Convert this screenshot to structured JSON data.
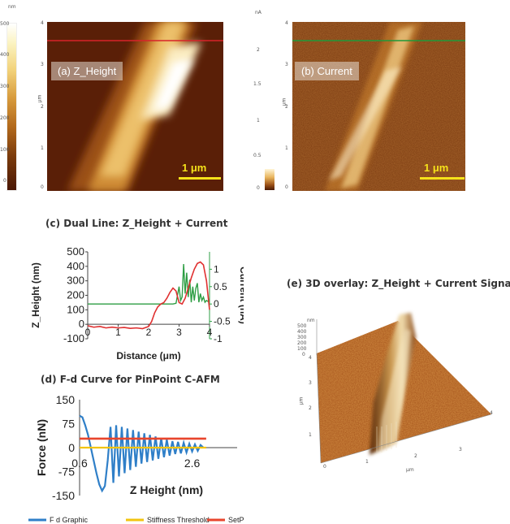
{
  "panel_a": {
    "label": "(a) Z_Height",
    "unit": "nm",
    "colorbar_ticks": [
      "500",
      "400",
      "300",
      "200",
      "100",
      "0"
    ],
    "axis_ticks": [
      "4",
      "3",
      "2",
      "1",
      "0"
    ],
    "axis_unit": "μm",
    "scale_label": "1  μm"
  },
  "panel_b": {
    "label": "(b) Current",
    "unit": "nA",
    "colorbar_ticks": [
      "2",
      "1.5",
      "1",
      "0.5",
      "0"
    ],
    "axis_ticks": [
      "4",
      "3",
      "2",
      "1",
      "0"
    ],
    "axis_unit": "μm",
    "scale_label": "1   μm"
  },
  "panel_e": {
    "title": "(e) 3D overlay: Z_Height + Current Signal",
    "z_unit": "nm",
    "z_ticks": [
      "500",
      "400",
      "300",
      "200",
      "100",
      "0"
    ],
    "axis_ticks_right": [
      "0",
      "1",
      "2",
      "3",
      "4"
    ],
    "axis_ticks_left": [
      "1",
      "2",
      "3",
      "4"
    ],
    "axis_unit": "μm"
  },
  "colors": {
    "height_series": "#e03030",
    "current_series": "#2e9e44",
    "fd_graphic": "#2f7fc8",
    "stiffness": "#f2c40f",
    "setpoint": "#e8452c",
    "scalebar": "#f5e21a"
  },
  "chart_data": [
    {
      "id": "c",
      "type": "line",
      "title": "(c) Dual Line: Z_Height + Current",
      "xlabel": "Distance (μm)",
      "ylabel": "Z_Height (nm)",
      "y2label": "Current (nA)",
      "xlim": [
        0,
        4
      ],
      "ylim": [
        -100,
        500
      ],
      "y2lim": [
        -1,
        1.5
      ],
      "xticks": [
        "0",
        "1",
        "2",
        "3",
        "4"
      ],
      "yticks": [
        "-100",
        "0",
        "100",
        "200",
        "300",
        "400",
        "500"
      ],
      "y2ticks": [
        "-1",
        "-0.5",
        "0",
        "0.5",
        "1"
      ],
      "series": [
        {
          "axis": "left",
          "x": [
            0,
            0.2,
            0.4,
            0.6,
            0.8,
            1.0,
            1.2,
            1.4,
            1.6,
            1.8,
            2.0,
            2.1,
            2.2,
            2.3,
            2.4,
            2.5,
            2.6,
            2.7,
            2.8,
            2.9,
            3.0,
            3.1,
            3.2,
            3.3,
            3.4,
            3.5,
            3.6,
            3.7,
            3.8,
            3.9,
            4.0
          ],
          "values": [
            -10,
            -20,
            -15,
            -25,
            -20,
            -25,
            -22,
            -28,
            -25,
            -30,
            -15,
            20,
            80,
            120,
            140,
            150,
            180,
            220,
            250,
            230,
            150,
            140,
            180,
            250,
            320,
            380,
            420,
            430,
            410,
            300,
            100
          ]
        },
        {
          "axis": "right",
          "x": [
            0,
            0.5,
            1.0,
            1.5,
            2.0,
            2.5,
            2.8,
            2.9,
            3.0,
            3.05,
            3.1,
            3.15,
            3.2,
            3.25,
            3.3,
            3.35,
            3.4,
            3.45,
            3.5,
            3.55,
            3.6,
            3.65,
            3.7,
            3.75,
            3.8,
            3.85,
            3.9,
            4.0
          ],
          "values": [
            0,
            0,
            0,
            0,
            0,
            0,
            0,
            0.02,
            0.5,
            0.1,
            0.2,
            1.15,
            0.3,
            0.9,
            0.2,
            0.7,
            0.05,
            0.5,
            0.1,
            0.45,
            0.6,
            0.05,
            0.3,
            0.1,
            0.2,
            0.05,
            0.1,
            0.05
          ]
        }
      ]
    },
    {
      "id": "d",
      "type": "line",
      "title": "(d) F-d Curve for PinPoint C-AFM",
      "xlabel": "Z Height (nm)",
      "ylabel": "Force (nN)",
      "xlim": [
        0.6,
        3.4
      ],
      "ylim": [
        -150,
        150
      ],
      "xticks_shown": [
        "0.6",
        "2.6"
      ],
      "yticks": [
        "150",
        "75",
        "0",
        "-75",
        "-150"
      ],
      "legend": [
        "F d Graphic",
        "Stiffness Threshold",
        "SetPoint"
      ],
      "setpoint": 28,
      "stiffness_threshold": 0,
      "series": [
        {
          "name": "F d Graphic",
          "x": [
            0.6,
            0.65,
            0.7,
            0.75,
            0.8,
            0.85,
            0.9,
            0.95,
            1.0,
            1.05,
            1.1,
            1.15,
            1.2,
            1.25,
            1.3,
            1.35,
            1.4,
            1.45,
            1.5,
            1.55,
            1.6,
            1.65,
            1.7,
            1.75,
            1.8,
            1.85,
            1.9,
            1.95,
            2.0,
            2.05,
            2.1,
            2.15,
            2.2,
            2.25,
            2.3,
            2.35,
            2.4,
            2.45,
            2.5,
            2.55,
            2.6,
            2.65,
            2.7,
            2.75,
            2.8
          ],
          "values": [
            100,
            95,
            70,
            40,
            0,
            -40,
            -80,
            -115,
            -135,
            -120,
            -40,
            65,
            -110,
            70,
            -90,
            65,
            -80,
            60,
            -70,
            55,
            -60,
            50,
            -50,
            45,
            -45,
            40,
            -40,
            35,
            -35,
            30,
            -30,
            25,
            -25,
            20,
            -20,
            18,
            -18,
            15,
            -15,
            12,
            -12,
            10,
            -10,
            8,
            0
          ]
        }
      ]
    }
  ]
}
